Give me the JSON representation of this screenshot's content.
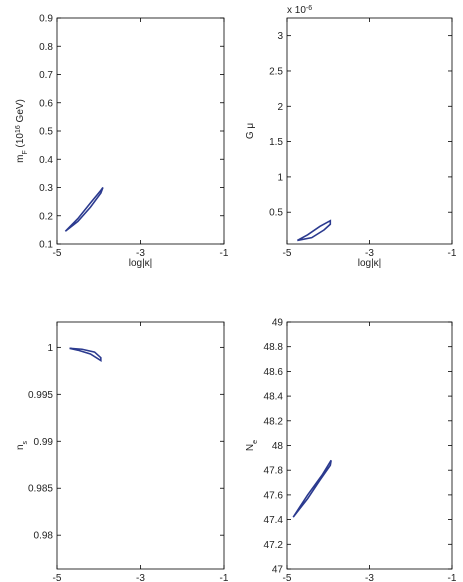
{
  "chart_data": [
    {
      "type": "line",
      "xlabel": "log|κ|",
      "ylabel": [
        {
          "text": "m"
        },
        {
          "text": "F",
          "shift": "sub"
        },
        {
          "text": " (10"
        },
        {
          "text": "16",
          "shift": "sup"
        },
        {
          "text": " GeV)"
        }
      ],
      "xlim": [
        -5,
        -1
      ],
      "xticks": [
        -5,
        -3,
        -1
      ],
      "ylim": [
        0.1,
        0.9
      ],
      "yticks": [
        0.1,
        0.2,
        0.3,
        0.4,
        0.5,
        0.6,
        0.7,
        0.8,
        0.9
      ],
      "series": [
        {
          "color": "#2b3a8f",
          "x": [
            -4.8,
            -4.5,
            -4.2,
            -3.95,
            -3.9,
            -3.95,
            -4.2,
            -4.5,
            -4.8
          ],
          "values": [
            0.145,
            0.18,
            0.23,
            0.28,
            0.3,
            0.29,
            0.245,
            0.19,
            0.145
          ]
        }
      ]
    },
    {
      "type": "line",
      "xlabel": "log|κ|",
      "ylabel": [
        {
          "text": "G μ"
        }
      ],
      "exponent": [
        {
          "text": "x 10"
        },
        {
          "text": "-6",
          "shift": "sup"
        }
      ],
      "xlim": [
        -5,
        -1
      ],
      "xticks": [
        -5,
        -3,
        -1
      ],
      "ylim": [
        0.05,
        3.25
      ],
      "yticks": [
        0.5,
        1,
        1.5,
        2,
        2.5,
        3
      ],
      "series": [
        {
          "color": "#2b3a8f",
          "x": [
            -4.75,
            -4.4,
            -4.1,
            -3.95,
            -3.95,
            -4.2,
            -4.5,
            -4.75
          ],
          "values": [
            0.1,
            0.14,
            0.25,
            0.33,
            0.38,
            0.3,
            0.18,
            0.1
          ]
        }
      ]
    },
    {
      "type": "line",
      "xlabel": "log|κ|",
      "ylabel": [
        {
          "text": "n"
        },
        {
          "text": "s",
          "shift": "sub"
        }
      ],
      "xlim": [
        -5,
        -1
      ],
      "xticks": [
        -5,
        -3,
        -1
      ],
      "ylim": [
        0.9764,
        1.0027
      ],
      "yticks": [
        0.98,
        0.985,
        0.99,
        0.995,
        1
      ],
      "series": [
        {
          "color": "#2b3a8f",
          "x": [
            -4.7,
            -4.4,
            -4.1,
            -3.95,
            -3.95,
            -4.2,
            -4.5,
            -4.7
          ],
          "values": [
            0.9999,
            0.9998,
            0.9995,
            0.9989,
            0.9986,
            0.9993,
            0.9997,
            0.9999
          ]
        }
      ]
    },
    {
      "type": "line",
      "xlabel": "log|κ|",
      "ylabel": [
        {
          "text": "N"
        },
        {
          "text": "e",
          "shift": "sub"
        }
      ],
      "xlim": [
        -5,
        -1
      ],
      "xticks": [
        -5,
        -3,
        -1
      ],
      "ylim": [
        47,
        49
      ],
      "yticks": [
        47,
        47.2,
        47.4,
        47.6,
        47.8,
        48,
        48.2,
        48.4,
        48.6,
        48.8,
        49
      ],
      "series": [
        {
          "color": "#2b3a8f",
          "x": [
            -4.85,
            -4.5,
            -4.2,
            -3.95,
            -3.93,
            -4.15,
            -4.5,
            -4.85
          ],
          "values": [
            47.42,
            47.57,
            47.72,
            47.84,
            47.88,
            47.76,
            47.6,
            47.42
          ]
        }
      ]
    }
  ]
}
